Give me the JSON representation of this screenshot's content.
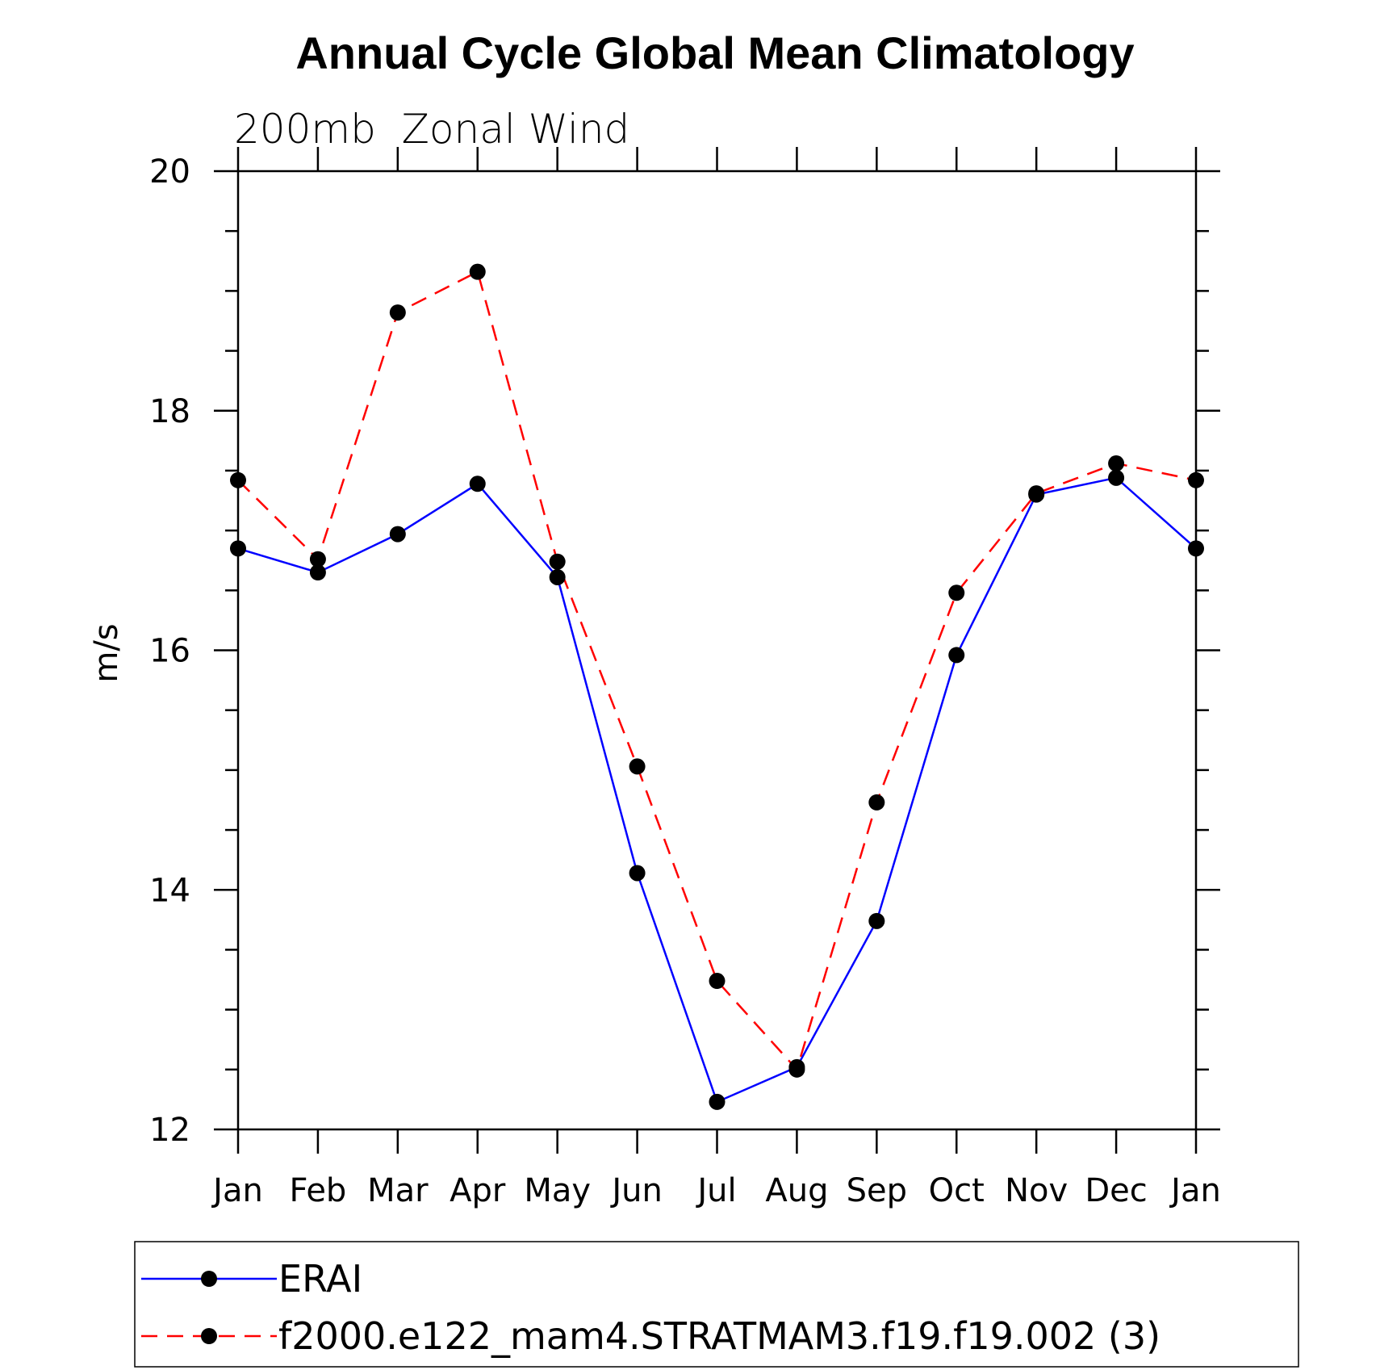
{
  "chart_data": {
    "type": "line",
    "title": "Annual Cycle Global Mean Climatology",
    "subtitle": "200mb  Zonal Wind",
    "ylabel": "m/s",
    "xlabel": "",
    "categories": [
      "Jan",
      "Feb",
      "Mar",
      "Apr",
      "May",
      "Jun",
      "Jul",
      "Aug",
      "Sep",
      "Oct",
      "Nov",
      "Dec",
      "Jan"
    ],
    "ylim": [
      12,
      20
    ],
    "yticks": [
      12,
      14,
      16,
      18,
      20
    ],
    "series": [
      {
        "name": "ERAI",
        "color": "#0000ff",
        "dash": "solid",
        "marker": "filled-circle",
        "values": [
          16.85,
          16.65,
          16.97,
          17.39,
          16.61,
          14.14,
          12.23,
          12.52,
          13.74,
          15.96,
          17.3,
          17.44,
          16.85
        ]
      },
      {
        "name": "f2000.e122_mam4.STRATMAM3.f19.f19.002 (3)",
        "color": "#ff0000",
        "dash": "dashed",
        "marker": "filled-circle",
        "values": [
          17.42,
          16.76,
          18.82,
          19.16,
          16.74,
          15.03,
          13.24,
          12.5,
          14.73,
          16.48,
          17.31,
          17.56,
          17.42
        ]
      }
    ],
    "grid": false,
    "legend_position": "bottom"
  }
}
